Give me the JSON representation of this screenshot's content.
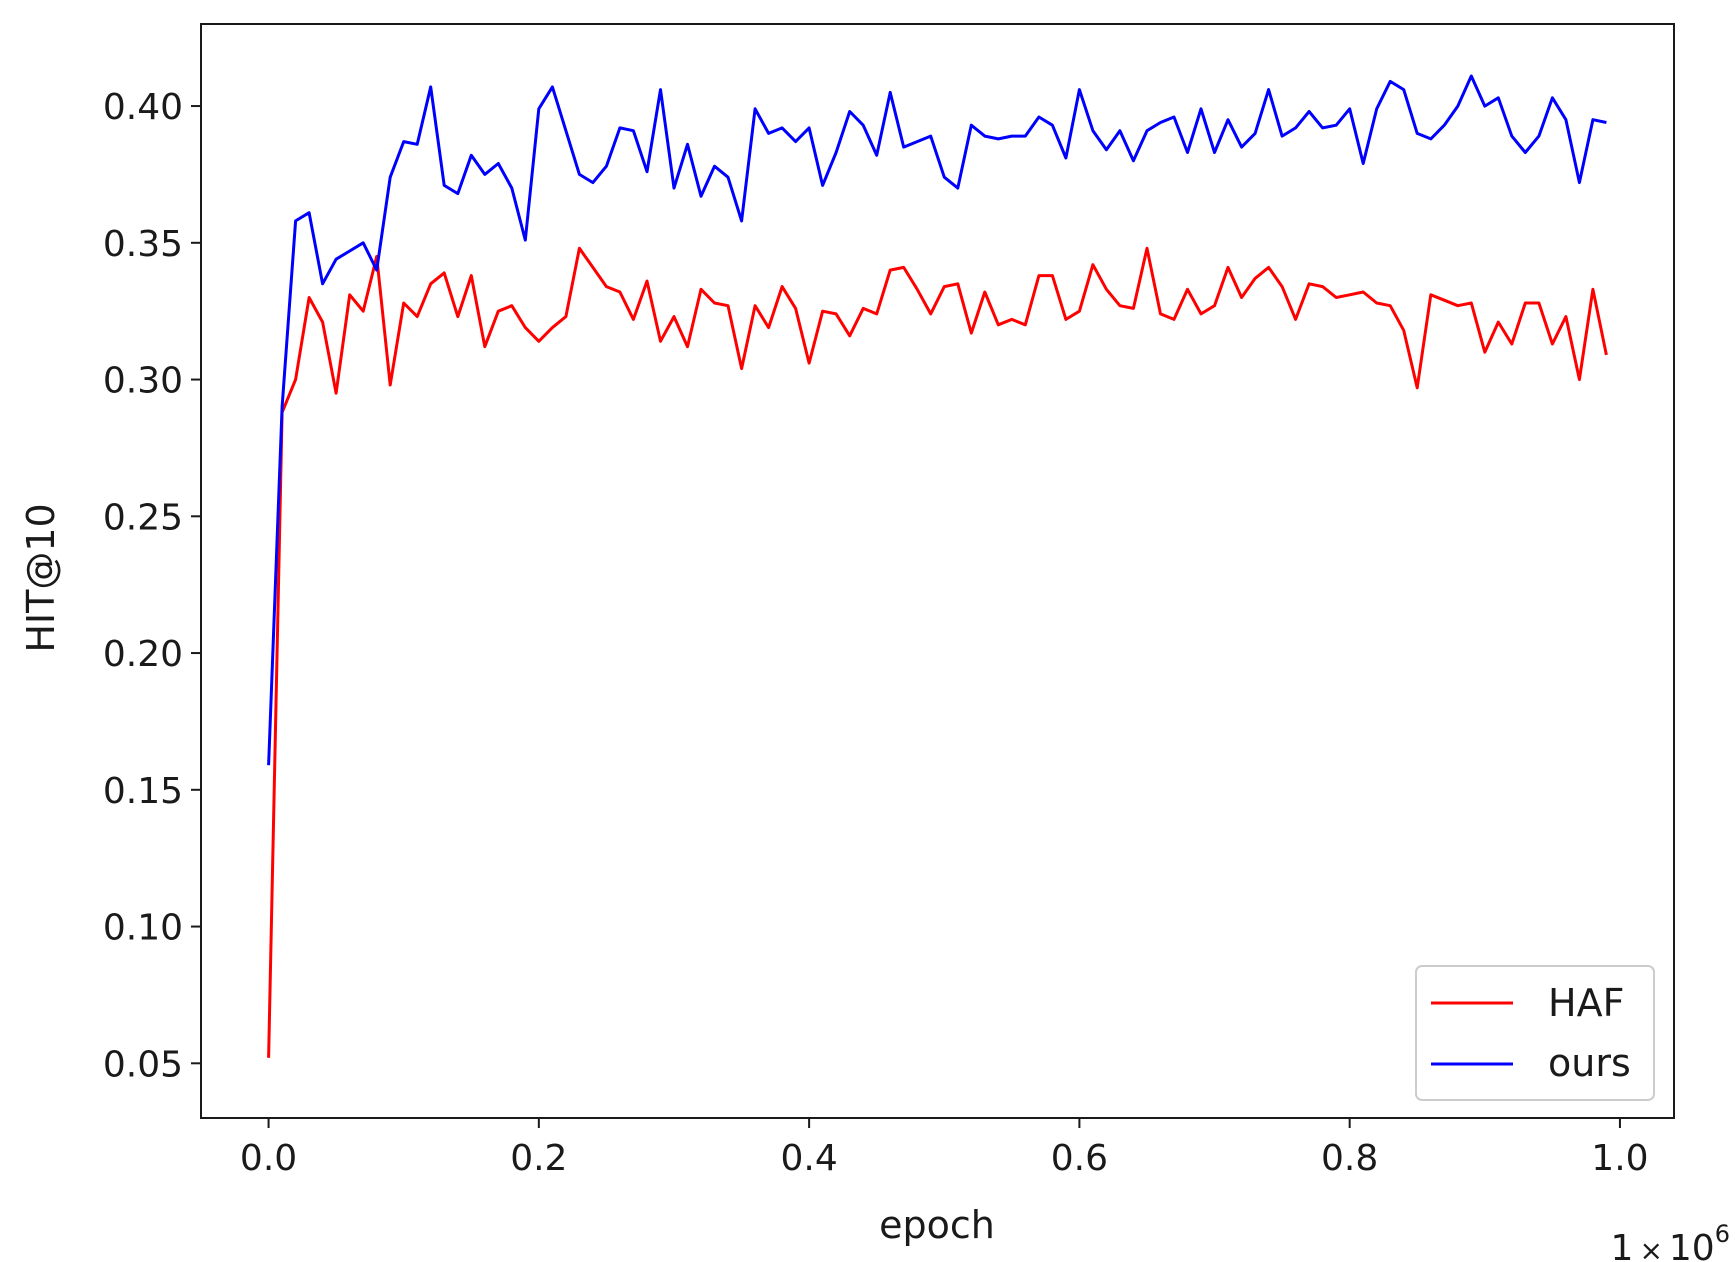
{
  "chart_data": {
    "type": "line",
    "title": "",
    "xlabel": "epoch",
    "ylabel": "HIT@10",
    "x_offset_label": {
      "base": "1",
      "times": "×",
      "power": "10",
      "exponent": "6"
    },
    "xlim": [
      -0.05,
      1.04
    ],
    "ylim": [
      0.03,
      0.43
    ],
    "x_ticks": [
      0.0,
      0.2,
      0.4,
      0.6,
      0.8,
      1.0
    ],
    "x_tick_labels": [
      "0.0",
      "0.2",
      "0.4",
      "0.6",
      "0.8",
      "1.0"
    ],
    "y_ticks": [
      0.05,
      0.1,
      0.15,
      0.2,
      0.25,
      0.3,
      0.35,
      0.4
    ],
    "y_tick_labels": [
      "0.05",
      "0.10",
      "0.15",
      "0.20",
      "0.25",
      "0.30",
      "0.35",
      "0.40"
    ],
    "grid": false,
    "legend_position": "lower-right",
    "x": [
      0.0,
      0.01,
      0.02,
      0.03,
      0.04,
      0.05,
      0.06,
      0.07,
      0.08,
      0.09,
      0.1,
      0.11,
      0.12,
      0.13,
      0.14,
      0.15,
      0.16,
      0.17,
      0.18,
      0.19,
      0.2,
      0.21,
      0.22,
      0.23,
      0.24,
      0.25,
      0.26,
      0.27,
      0.28,
      0.29,
      0.3,
      0.31,
      0.32,
      0.33,
      0.34,
      0.35,
      0.36,
      0.37,
      0.38,
      0.39,
      0.4,
      0.41,
      0.42,
      0.43,
      0.44,
      0.45,
      0.46,
      0.47,
      0.48,
      0.49,
      0.5,
      0.51,
      0.52,
      0.53,
      0.54,
      0.55,
      0.56,
      0.57,
      0.58,
      0.59,
      0.6,
      0.61,
      0.62,
      0.63,
      0.64,
      0.65,
      0.66,
      0.67,
      0.68,
      0.69,
      0.7,
      0.71,
      0.72,
      0.73,
      0.74,
      0.75,
      0.76,
      0.77,
      0.78,
      0.79,
      0.8,
      0.81,
      0.82,
      0.83,
      0.84,
      0.85,
      0.86,
      0.87,
      0.88,
      0.89,
      0.9,
      0.91,
      0.92,
      0.93,
      0.94,
      0.95,
      0.96,
      0.97,
      0.98,
      0.99
    ],
    "series": [
      {
        "name": "HAF",
        "color": "#ff0000",
        "values": [
          0.052,
          0.288,
          0.3,
          0.33,
          0.321,
          0.295,
          0.331,
          0.325,
          0.345,
          0.298,
          0.328,
          0.323,
          0.335,
          0.339,
          0.323,
          0.338,
          0.312,
          0.325,
          0.327,
          0.319,
          0.314,
          0.319,
          0.323,
          0.348,
          0.341,
          0.334,
          0.332,
          0.322,
          0.336,
          0.314,
          0.323,
          0.312,
          0.333,
          0.328,
          0.327,
          0.304,
          0.327,
          0.319,
          0.334,
          0.326,
          0.306,
          0.325,
          0.324,
          0.316,
          0.326,
          0.324,
          0.34,
          0.341,
          0.333,
          0.324,
          0.334,
          0.335,
          0.317,
          0.332,
          0.32,
          0.322,
          0.32,
          0.338,
          0.338,
          0.322,
          0.325,
          0.342,
          0.333,
          0.327,
          0.326,
          0.348,
          0.324,
          0.322,
          0.333,
          0.324,
          0.327,
          0.341,
          0.33,
          0.337,
          0.341,
          0.334,
          0.322,
          0.335,
          0.334,
          0.33,
          0.331,
          0.332,
          0.328,
          0.327,
          0.318,
          0.297,
          0.331,
          0.329,
          0.327,
          0.328,
          0.31,
          0.321,
          0.313,
          0.328,
          0.328,
          0.313,
          0.323,
          0.3,
          0.333,
          0.309
        ]
      },
      {
        "name": "ours",
        "color": "#0000ff",
        "values": [
          0.159,
          0.29,
          0.358,
          0.361,
          0.335,
          0.344,
          0.347,
          0.35,
          0.34,
          0.374,
          0.387,
          0.386,
          0.407,
          0.371,
          0.368,
          0.382,
          0.375,
          0.379,
          0.37,
          0.351,
          0.399,
          0.407,
          0.391,
          0.375,
          0.372,
          0.378,
          0.392,
          0.391,
          0.376,
          0.406,
          0.37,
          0.386,
          0.367,
          0.378,
          0.374,
          0.358,
          0.399,
          0.39,
          0.392,
          0.387,
          0.392,
          0.371,
          0.383,
          0.398,
          0.393,
          0.382,
          0.405,
          0.385,
          0.387,
          0.389,
          0.374,
          0.37,
          0.393,
          0.389,
          0.388,
          0.389,
          0.389,
          0.396,
          0.393,
          0.381,
          0.406,
          0.391,
          0.384,
          0.391,
          0.38,
          0.391,
          0.394,
          0.396,
          0.383,
          0.399,
          0.383,
          0.395,
          0.385,
          0.39,
          0.406,
          0.389,
          0.392,
          0.398,
          0.392,
          0.393,
          0.399,
          0.379,
          0.399,
          0.409,
          0.406,
          0.39,
          0.388,
          0.393,
          0.4,
          0.411,
          0.4,
          0.403,
          0.389,
          0.383,
          0.389,
          0.403,
          0.395,
          0.372,
          0.395,
          0.394
        ]
      }
    ]
  }
}
